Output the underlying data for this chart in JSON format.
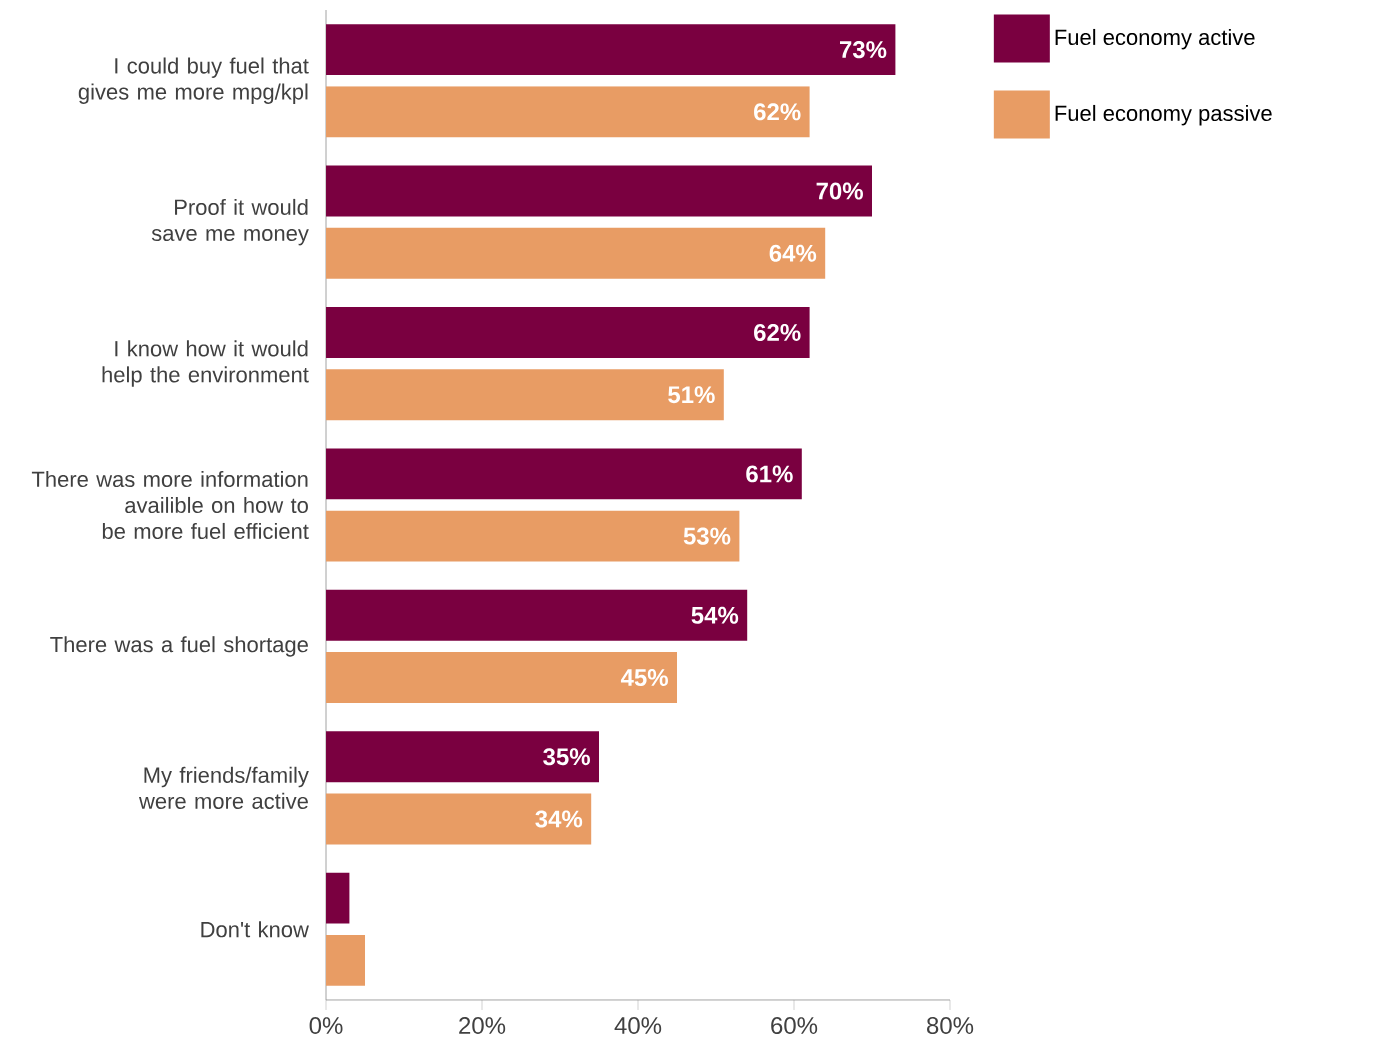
{
  "chart_data": {
    "type": "bar",
    "orientation": "horizontal",
    "categories": [
      "I could buy fuel that gives me more mpg/kpl",
      "Proof it would save me money",
      "I know how it would help the environment",
      "There was more information availible on how to be more fuel efficient",
      "There was a fuel shortage",
      "My friends/family were more active",
      "Don't know"
    ],
    "series": [
      {
        "name": "Fuel economy active",
        "color": "#7a0040",
        "values": [
          73,
          70,
          62,
          61,
          54,
          35,
          3
        ],
        "value_labels": [
          "73%",
          "70%",
          "62%",
          "61%",
          "54%",
          "35%",
          null
        ]
      },
      {
        "name": "Fuel economy passive",
        "color": "#e89c64",
        "values": [
          62,
          64,
          51,
          53,
          45,
          34,
          5
        ],
        "value_labels": [
          "62%",
          "64%",
          "51%",
          "53%",
          "45%",
          "34%",
          null
        ]
      }
    ],
    "xlim": [
      0,
      80
    ],
    "xticks": [
      {
        "value": 0,
        "label": "0%"
      },
      {
        "value": 20,
        "label": "20%"
      },
      {
        "value": 40,
        "label": "40%"
      },
      {
        "value": 60,
        "label": "60%"
      },
      {
        "value": 80,
        "label": "80%"
      }
    ],
    "legend": "top right"
  }
}
